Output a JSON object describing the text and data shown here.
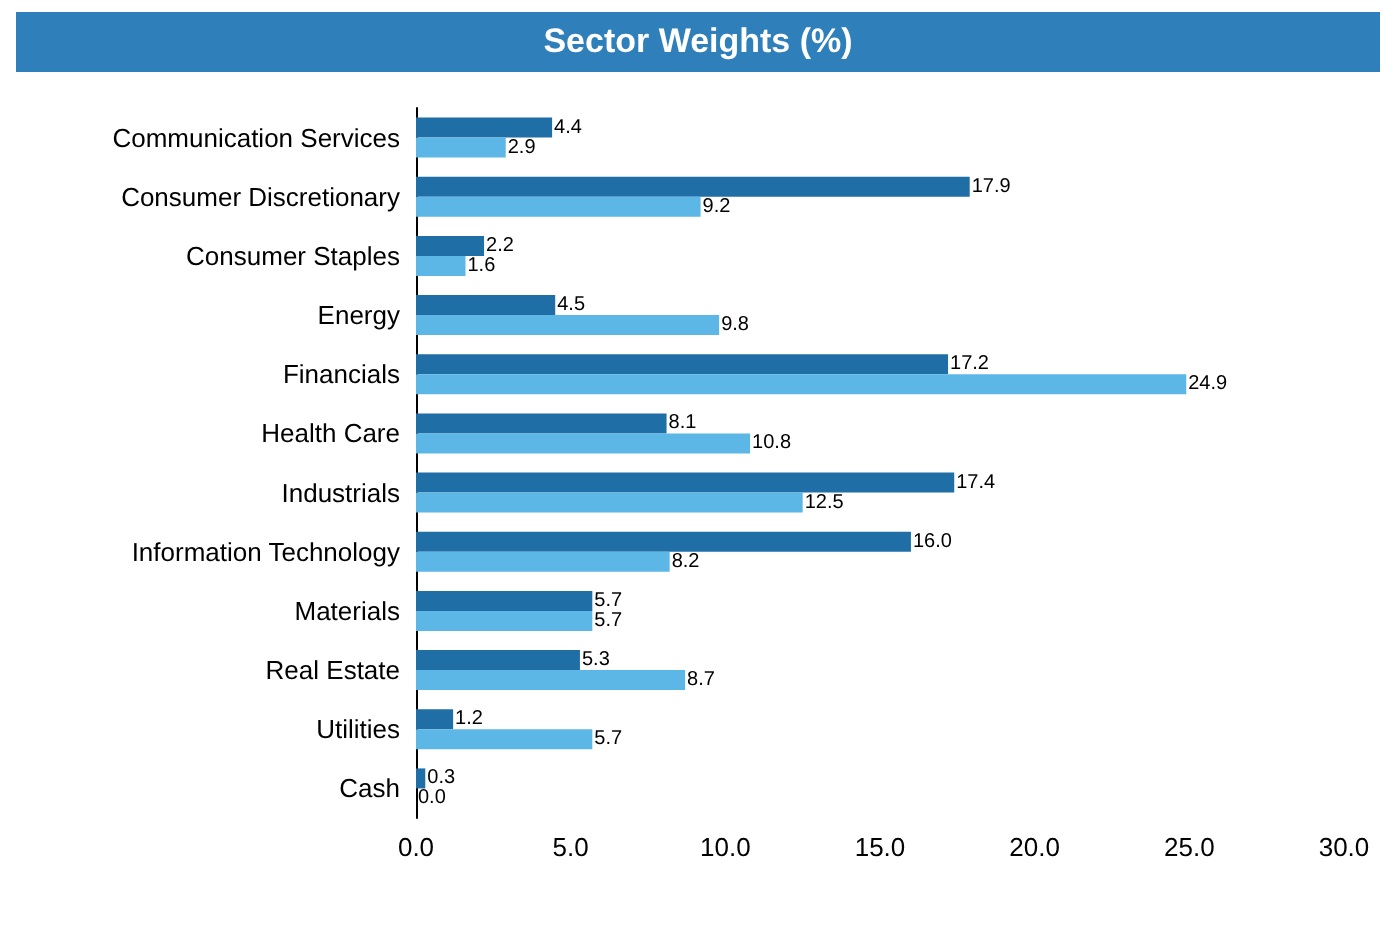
{
  "chart_data": {
    "type": "bar",
    "orientation": "horizontal",
    "title": "Sector Weights (%)",
    "categories": [
      "Communication Services",
      "Consumer Discretionary",
      "Consumer Staples",
      "Energy",
      "Financials",
      "Health Care",
      "Industrials",
      "Information Technology",
      "Materials",
      "Real Estate",
      "Utilities",
      "Cash"
    ],
    "series": [
      {
        "color": "#1f6fa6",
        "values": [
          4.4,
          17.9,
          2.2,
          4.5,
          17.2,
          8.1,
          17.4,
          16.0,
          5.7,
          5.3,
          1.2,
          0.3
        ],
        "value_labels": [
          "4.4",
          "17.9",
          "2.2",
          "4.5",
          "17.2",
          "8.1",
          "17.4",
          "16.0",
          "5.7",
          "5.3",
          "1.2",
          "0.3"
        ]
      },
      {
        "color": "#5cb6e6",
        "values": [
          2.9,
          9.2,
          1.6,
          9.8,
          24.9,
          10.8,
          12.5,
          8.2,
          5.7,
          8.7,
          5.7,
          0.0
        ],
        "value_labels": [
          "2.9",
          "9.2",
          "1.6",
          "9.8",
          "24.9",
          "10.8",
          "12.5",
          "8.2",
          "5.7",
          "8.7",
          "5.7",
          "0.0"
        ]
      }
    ],
    "xlim": [
      0,
      30
    ],
    "xticks": [
      {
        "value": 0,
        "label": "0.0"
      },
      {
        "value": 5,
        "label": "5.0"
      },
      {
        "value": 10,
        "label": "10.0"
      },
      {
        "value": 15,
        "label": "15.0"
      },
      {
        "value": 20,
        "label": "20.0"
      },
      {
        "value": 25,
        "label": "25.0"
      },
      {
        "value": 30,
        "label": "30.0"
      }
    ],
    "grid": false
  }
}
